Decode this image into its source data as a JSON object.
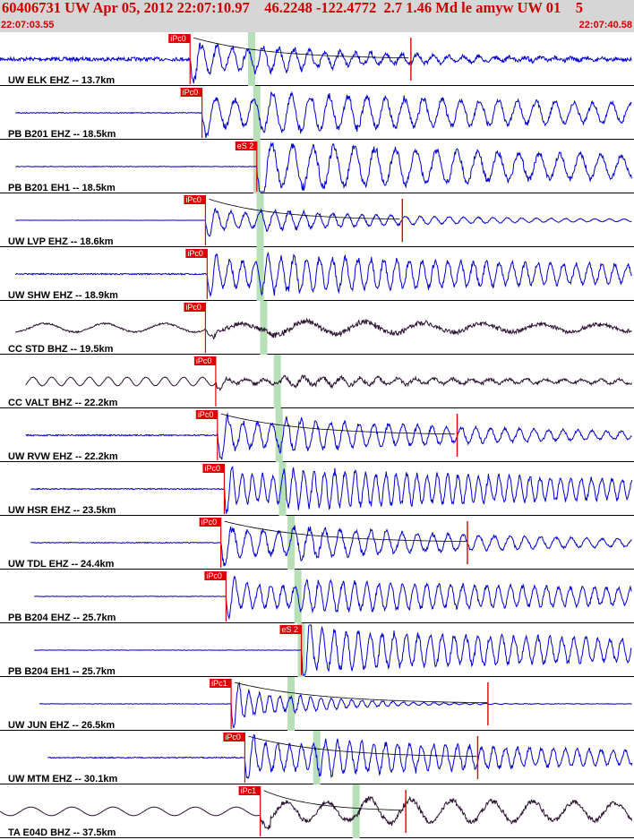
{
  "header": {
    "title": "60406731 UW Apr 05, 2012 22:07:10.97    46.2248 -122.4772  2.7 1.46 Md le amyw UW 01    5",
    "start_time": "22:07:03.55",
    "end_time": "22:07:40.58"
  },
  "colors": {
    "trace_blue": "#0000cc",
    "trace_dark": "#2a1030",
    "pick_red": "#dd0000",
    "window_green": "#b8e0b8",
    "header_bg": "#d6d6d6"
  },
  "chart_data": {
    "type": "seismogram",
    "event_id": "60406731",
    "network": "UW",
    "origin_time": "Apr 05, 2012 22:07:10.97",
    "latitude": 46.2248,
    "longitude": -122.4772,
    "depth_km": 2.7,
    "magnitude": 1.46,
    "magnitude_type": "Md",
    "time_start": "22:07:03.55",
    "time_end": "22:07:40.58",
    "traces": [
      {
        "label": "UW ELK EHZ -- 13.7km",
        "station": "ELK",
        "distance_km": 13.7,
        "color": "blue",
        "pick_label": "iPc0",
        "pick_type": "P",
        "pick_sec": 11.1,
        "s_sec": 14.7,
        "coda_sec": 24.0,
        "noise": 0.35,
        "osc_period": 0.9,
        "osc_amp": 0.9,
        "decay": 8,
        "start_sec": 0,
        "end_sec": 37.0
      },
      {
        "label": "PB B201 EHZ -- 18.5km",
        "station": "B201",
        "distance_km": 18.5,
        "color": "blue",
        "pick_label": "iPc0",
        "pick_type": "P",
        "pick_sec": 11.8,
        "s_sec": 15.0,
        "coda_sec": null,
        "noise": 0.08,
        "osc_period": 1.1,
        "osc_amp": 0.9,
        "decay": 30,
        "start_sec": 0.9,
        "end_sec": 38.0
      },
      {
        "label": "PB B201 EH1 -- 18.5km",
        "station": "B201",
        "distance_km": 18.5,
        "color": "blue",
        "pick_label": "eS 2",
        "pick_type": "S",
        "pick_sec": 15.0,
        "s_sec": 15.0,
        "coda_sec": null,
        "noise": 0.06,
        "osc_period": 1.2,
        "osc_amp": 0.95,
        "decay": 30,
        "start_sec": 0.9,
        "end_sec": 38.0
      },
      {
        "label": "UW LVP EHZ -- 18.6km",
        "station": "LVP",
        "distance_km": 18.6,
        "color": "blue",
        "pick_label": "iPc0",
        "pick_type": "P",
        "pick_sec": 12.0,
        "s_sec": 15.2,
        "coda_sec": 23.5,
        "noise": 0.02,
        "osc_period": 0.85,
        "osc_amp": 0.6,
        "decay": 10,
        "start_sec": 0.9,
        "end_sec": 38.0
      },
      {
        "label": "UW SHW EHZ -- 18.9km",
        "station": "SHW",
        "distance_km": 18.9,
        "color": "blue",
        "pick_label": "iPc0",
        "pick_type": "P",
        "pick_sec": 12.1,
        "s_sec": 15.2,
        "coda_sec": null,
        "noise": 0.12,
        "osc_period": 0.75,
        "osc_amp": 0.85,
        "decay": 30,
        "start_sec": 0.9,
        "end_sec": 38.0
      },
      {
        "label": "CC STD BHZ -- 19.5km",
        "station": "STD",
        "distance_km": 19.5,
        "color": "dark",
        "pick_label": "iPc0",
        "pick_type": "P",
        "pick_sec": 12.0,
        "s_sec": 15.4,
        "coda_sec": null,
        "noise": 0.15,
        "osc_period": 3.5,
        "osc_amp": 0.6,
        "decay": 40,
        "start_sec": 0.9,
        "end_sec": 38.0
      },
      {
        "label": "CC VALT BHZ -- 22.2km",
        "station": "VALT",
        "distance_km": 22.2,
        "color": "dark",
        "pick_label": "iPc0",
        "pick_type": "P",
        "pick_sec": 12.6,
        "s_sec": 16.2,
        "coda_sec": null,
        "noise": 0.05,
        "osc_period": 1.1,
        "osc_amp": 0.55,
        "decay": 30,
        "start_sec": 1.5,
        "end_sec": 38.5
      },
      {
        "label": "UW RVW EHZ -- 22.2km",
        "station": "RVW",
        "distance_km": 22.2,
        "color": "blue",
        "pick_label": "iPc0",
        "pick_type": "P",
        "pick_sec": 12.7,
        "s_sec": 16.3,
        "coda_sec": 26.7,
        "noise": 0.12,
        "osc_period": 0.85,
        "osc_amp": 0.9,
        "decay": 14,
        "start_sec": 1.5,
        "end_sec": 38.5
      },
      {
        "label": "UW HSR EHZ -- 23.5km",
        "station": "HSR",
        "distance_km": 23.5,
        "color": "blue",
        "pick_label": "iPc0",
        "pick_type": "P",
        "pick_sec": 13.1,
        "s_sec": 16.5,
        "coda_sec": null,
        "noise": 0.1,
        "osc_period": 0.6,
        "osc_amp": 0.9,
        "decay": 30,
        "start_sec": 1.8,
        "end_sec": 38.8
      },
      {
        "label": "UW TDL EHZ -- 24.4km",
        "station": "TDL",
        "distance_km": 24.4,
        "color": "blue",
        "pick_label": "iPc0",
        "pick_type": "P",
        "pick_sec": 12.9,
        "s_sec": 17.0,
        "coda_sec": 27.3,
        "noise": 0.08,
        "osc_period": 0.9,
        "osc_amp": 0.9,
        "decay": 14,
        "start_sec": 1.8,
        "end_sec": 38.8
      },
      {
        "label": "PB B204 EHZ -- 25.7km",
        "station": "B204",
        "distance_km": 25.7,
        "color": "blue",
        "pick_label": "iPc0",
        "pick_type": "P",
        "pick_sec": 13.2,
        "s_sec": 17.4,
        "coda_sec": null,
        "noise": 0.05,
        "osc_period": 0.7,
        "osc_amp": 0.75,
        "decay": 30,
        "start_sec": 2.0,
        "end_sec": 39.0
      },
      {
        "label": "PB B204 EH1 -- 25.7km",
        "station": "B204",
        "distance_km": 25.7,
        "color": "blue",
        "pick_label": "eS 2",
        "pick_type": "S",
        "pick_sec": 17.6,
        "s_sec": 17.6,
        "coda_sec": null,
        "noise": 0.04,
        "osc_period": 0.7,
        "osc_amp": 0.85,
        "decay": 30,
        "start_sec": 2.0,
        "end_sec": 39.0
      },
      {
        "label": "UW JUN EHZ -- 26.5km",
        "station": "JUN",
        "distance_km": 26.5,
        "color": "blue",
        "pick_label": "iPc1",
        "pick_type": "P",
        "pick_sec": 13.5,
        "s_sec": 17.0,
        "coda_sec": 28.5,
        "noise": 0.05,
        "osc_period": 0.6,
        "osc_amp": 0.95,
        "decay": 4,
        "start_sec": 2.3,
        "end_sec": 39.3
      },
      {
        "label": "UW MTM EHZ -- 30.1km",
        "station": "MTM",
        "distance_km": 30.1,
        "color": "blue",
        "pick_label": "iPc0",
        "pick_type": "P",
        "pick_sec": 14.3,
        "s_sec": 18.5,
        "coda_sec": 27.9,
        "noise": 0.1,
        "osc_period": 0.7,
        "osc_amp": 0.9,
        "decay": 20,
        "start_sec": 2.8,
        "end_sec": 40.0
      },
      {
        "label": "TA E04D BHZ -- 37.5km",
        "station": "E04D",
        "distance_km": 37.5,
        "color": "dark",
        "pick_label": "iPc1",
        "pick_type": "P",
        "pick_sec": 15.2,
        "s_sec": 20.8,
        "coda_sec": 23.7,
        "noise": 0.01,
        "osc_period": 2.4,
        "osc_amp": 0.7,
        "decay": 40,
        "start_sec": 0,
        "end_sec": 40.5
      }
    ]
  }
}
